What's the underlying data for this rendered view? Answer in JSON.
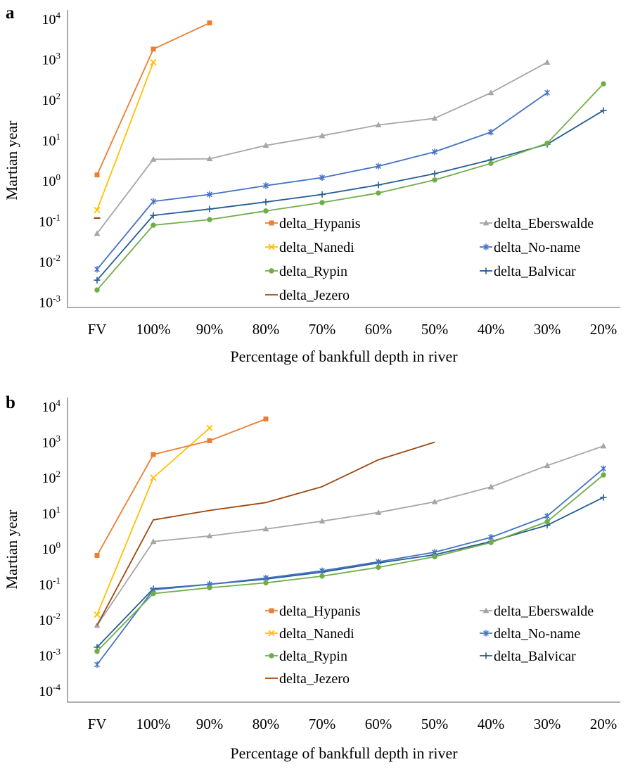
{
  "figure": {
    "panels": [
      {
        "label": "a",
        "ylabel": "Martian year",
        "xlabel": "Percentage of bankfull depth in river"
      },
      {
        "label": "b",
        "ylabel": "Martian year",
        "xlabel": "Percentage of bankfull depth in river"
      }
    ]
  },
  "chart_data": [
    {
      "type": "line",
      "panel": "a",
      "log_y": true,
      "grid": false,
      "ylabel": "Martian year",
      "xlabel": "Percentage of bankfull depth in river",
      "categories": [
        "FV",
        "100%",
        "90%",
        "80%",
        "70%",
        "60%",
        "50%",
        "40%",
        "30%",
        "20%"
      ],
      "y_tick_exponents": [
        4,
        3,
        2,
        1,
        0,
        -1,
        -2,
        -3
      ],
      "ylim": [
        0.001,
        10000
      ],
      "legend_position": "inside-lower-center-two-columns",
      "series": [
        {
          "name": "delta_Hypanis",
          "color": "#ED7D31",
          "marker": "square",
          "values": [
            1.4,
            1800,
            8000,
            null,
            null,
            null,
            null,
            null,
            null,
            null
          ]
        },
        {
          "name": "delta_Nanedi",
          "color": "#FFC000",
          "marker": "x",
          "values": [
            0.19,
            850,
            null,
            null,
            null,
            null,
            null,
            null,
            null,
            null
          ]
        },
        {
          "name": "delta_Rypin",
          "color": "#70AD47",
          "marker": "circle",
          "values": [
            0.002,
            0.08,
            0.11,
            0.18,
            0.29,
            0.5,
            1.05,
            2.7,
            8.5,
            250
          ]
        },
        {
          "name": "delta_Jezero",
          "color": "#9E480E",
          "marker": "none",
          "values": [
            0.12,
            null,
            null,
            null,
            null,
            null,
            null,
            null,
            null,
            null
          ]
        },
        {
          "name": "delta_Eberswalde",
          "color": "#A6A6A6",
          "marker": "triangle",
          "values": [
            0.05,
            3.4,
            3.5,
            7.5,
            13,
            24,
            35,
            150,
            850,
            null
          ]
        },
        {
          "name": "delta_No-name",
          "color": "#4472C4",
          "marker": "asterisk",
          "values": [
            0.0065,
            0.31,
            0.46,
            0.76,
            1.2,
            2.3,
            5.2,
            16,
            150,
            null
          ]
        },
        {
          "name": "delta_Balvicar",
          "color": "#255E91",
          "marker": "plus",
          "values": [
            0.0035,
            0.14,
            0.2,
            0.3,
            0.46,
            0.79,
            1.5,
            3.3,
            8.0,
            55
          ]
        }
      ]
    },
    {
      "type": "line",
      "panel": "b",
      "log_y": true,
      "grid": false,
      "ylabel": "Martian year",
      "xlabel": "Percentage of bankfull depth in river",
      "categories": [
        "FV",
        "100%",
        "90%",
        "80%",
        "70%",
        "60%",
        "50%",
        "40%",
        "30%",
        "20%"
      ],
      "y_tick_exponents": [
        4,
        3,
        2,
        1,
        0,
        -1,
        -2,
        -3,
        -4
      ],
      "ylim": [
        0.0001,
        10000
      ],
      "legend_position": "inside-lower-center-two-columns",
      "series": [
        {
          "name": "delta_Hypanis",
          "color": "#ED7D31",
          "marker": "square",
          "values": [
            0.65,
            450,
            1100,
            4500,
            null,
            null,
            null,
            null,
            null,
            null
          ]
        },
        {
          "name": "delta_Nanedi",
          "color": "#FFC000",
          "marker": "x",
          "values": [
            0.014,
            100,
            2500,
            null,
            null,
            null,
            null,
            null,
            null,
            null
          ]
        },
        {
          "name": "delta_Rypin",
          "color": "#70AD47",
          "marker": "circle",
          "values": [
            0.0013,
            0.055,
            0.08,
            0.11,
            0.17,
            0.3,
            0.6,
            1.5,
            5.8,
            120
          ]
        },
        {
          "name": "delta_Jezero",
          "color": "#9E480E",
          "marker": "none",
          "values": [
            0.007,
            6.5,
            12,
            20,
            56,
            320,
            1000,
            null,
            null,
            null
          ]
        },
        {
          "name": "delta_Eberswalde",
          "color": "#A6A6A6",
          "marker": "triangle",
          "values": [
            0.007,
            1.6,
            2.3,
            3.6,
            6.0,
            10.5,
            21,
            55,
            220,
            780
          ]
        },
        {
          "name": "delta_No-name",
          "color": "#4472C4",
          "marker": "asterisk",
          "values": [
            0.00055,
            0.07,
            0.1,
            0.15,
            0.24,
            0.43,
            0.8,
            2.1,
            8.3,
            180
          ]
        },
        {
          "name": "delta_Balvicar",
          "color": "#255E91",
          "marker": "plus",
          "values": [
            0.0017,
            0.075,
            0.1,
            0.14,
            0.22,
            0.4,
            0.68,
            1.6,
            4.6,
            28
          ]
        }
      ]
    }
  ]
}
